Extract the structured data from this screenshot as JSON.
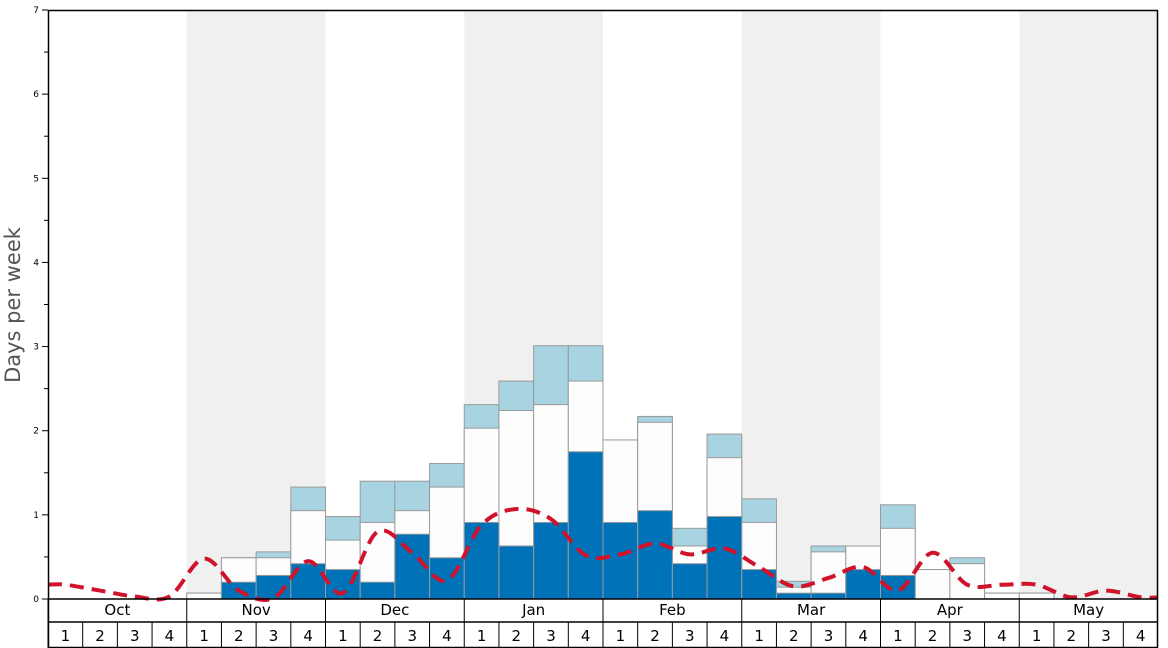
{
  "chart_data": {
    "type": "bar",
    "ylabel": "Days per week",
    "ylim": [
      0,
      7
    ],
    "yticks": [
      "0",
      "1",
      "2",
      "3",
      "4",
      "5",
      "6",
      "7"
    ],
    "months": [
      "Oct",
      "Nov",
      "Dec",
      "Jan",
      "Feb",
      "Mar",
      "Apr",
      "May"
    ],
    "weeks": [
      "1",
      "2",
      "3",
      "4"
    ],
    "colors": {
      "series_dark": "#0072b8",
      "series_white": "#fdfdfd",
      "series_light": "#a8d3e0",
      "trend_line": "#d0122b",
      "band_shade": "#f0f0f0"
    },
    "series": [
      {
        "values": [
          0,
          0,
          0,
          0,
          0,
          0.2,
          0.28,
          0.42,
          0.35,
          0.2,
          0.77,
          0.49,
          0.91,
          0.63,
          0.91,
          1.75,
          0.91,
          1.05,
          0.42,
          0.98,
          0.35,
          0.07,
          0.07,
          0.35,
          0.28,
          0,
          0,
          0,
          0,
          0,
          0,
          0
        ]
      },
      {
        "values": [
          0,
          0,
          0,
          0,
          0.07,
          0.49,
          0.49,
          1.05,
          0.7,
          0.91,
          1.05,
          1.33,
          2.03,
          2.24,
          2.31,
          2.59,
          1.89,
          2.1,
          0.63,
          1.68,
          0.91,
          0.14,
          0.56,
          0.63,
          0.84,
          0.35,
          0.42,
          0.07,
          0.07,
          0,
          0,
          0
        ]
      },
      {
        "values": [
          0,
          0,
          0,
          0,
          0.07,
          0.49,
          0.56,
          1.33,
          0.98,
          1.4,
          1.4,
          1.61,
          2.31,
          2.59,
          3.01,
          3.01,
          1.89,
          2.17,
          0.84,
          1.96,
          1.19,
          0.21,
          0.63,
          0.63,
          1.12,
          0.35,
          0.49,
          0.07,
          0.07,
          0,
          0,
          0
        ]
      },
      {
        "values": [
          0.17,
          0.1,
          0.03,
          0.03,
          0.48,
          0.1,
          0.01,
          0.45,
          0.07,
          0.8,
          0.55,
          0.22,
          0.88,
          1.07,
          0.95,
          0.52,
          0.53,
          0.66,
          0.53,
          0.6,
          0.38,
          0.15,
          0.25,
          0.38,
          0.1,
          0.55,
          0.17,
          0.17,
          0.17,
          0.02,
          0.1,
          0.02
        ]
      }
    ]
  }
}
